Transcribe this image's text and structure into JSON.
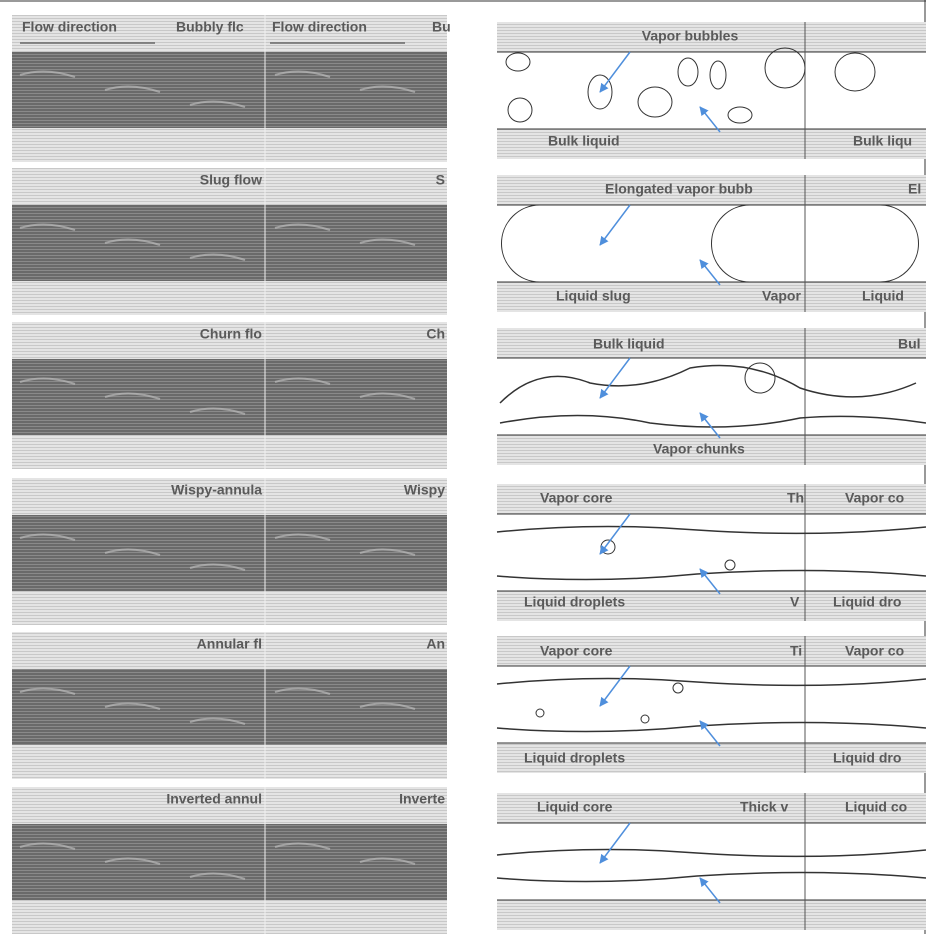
{
  "left_rows": [
    {
      "labels": [
        "Flow direction",
        "Bubbly flc",
        "Flow direction",
        "Bu"
      ]
    },
    {
      "labels": [
        "Slug flow",
        "S"
      ]
    },
    {
      "labels": [
        "Churn flo",
        "Ch"
      ]
    },
    {
      "labels": [
        "Wispy-annula",
        "Wispy"
      ]
    },
    {
      "labels": [
        "Annular fl",
        "An"
      ]
    },
    {
      "labels": [
        "Inverted annul",
        "Inverte"
      ]
    }
  ],
  "right_rows": [
    {
      "labels": [
        "Vapor bubbles",
        "Bulk liquid",
        "Bulk liqu"
      ]
    },
    {
      "labels": [
        "Elongated vapor bubb",
        "El",
        "Liquid slug",
        "Vapor",
        "Liquid"
      ]
    },
    {
      "labels": [
        "Bulk liquid",
        "Bul",
        "Vapor chunks"
      ]
    },
    {
      "labels": [
        "Vapor core",
        "Th",
        "Vapor co",
        "Liquid droplets",
        "V",
        "Liquid dro"
      ]
    },
    {
      "labels": [
        "Vapor core",
        "Ti",
        "Vapor co",
        "Liquid droplets",
        "Liquid dro"
      ]
    },
    {
      "labels": [
        "Liquid core",
        "Thick v",
        "Liquid co"
      ]
    }
  ]
}
